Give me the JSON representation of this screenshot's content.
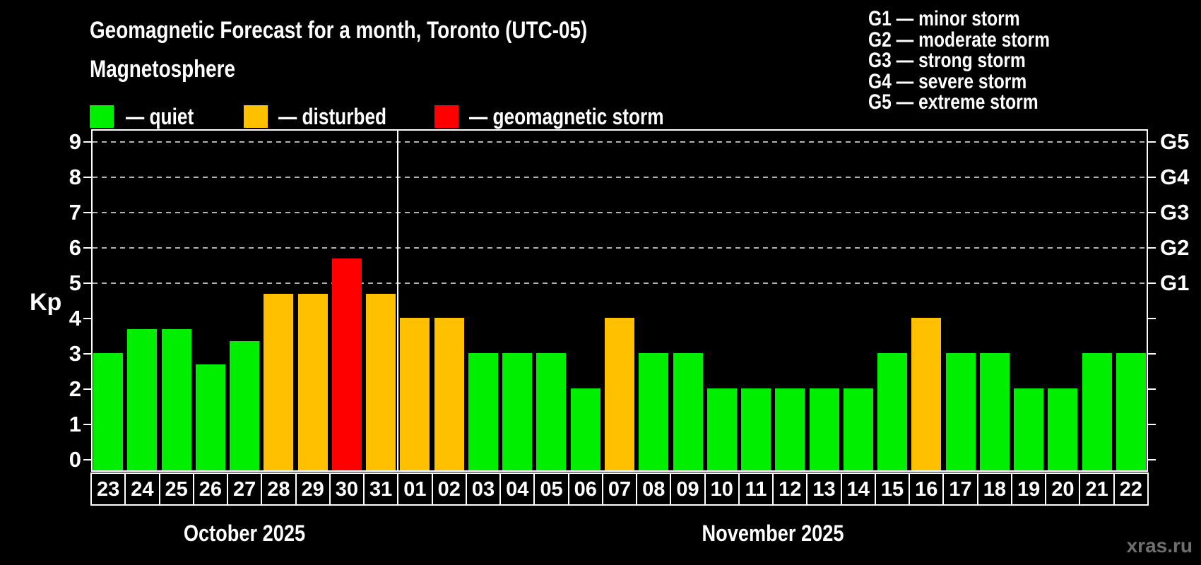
{
  "title": "Geomagnetic Forecast for a month, Toronto (UTC-05)",
  "subtitle": "Magnetosphere",
  "legend": {
    "items": [
      {
        "state": "quiet",
        "label": "— quiet",
        "color": "#00ee00"
      },
      {
        "state": "disturbed",
        "label": "— disturbed",
        "color": "#ffc000"
      },
      {
        "state": "storm",
        "label": "— geomagnetic storm",
        "color": "#ff0000"
      }
    ]
  },
  "g_scale_legend": [
    "G1 — minor storm",
    "G2 — moderate storm",
    "G3 — strong storm",
    "G4 — severe storm",
    "G5 — extreme storm"
  ],
  "watermark": "xras.ru",
  "chart_data": {
    "type": "bar",
    "title": "Geomagnetic Forecast for a month, Toronto (UTC-05)",
    "ylabel": "Kp",
    "ylim": [
      -0.34,
      9.32
    ],
    "yticks": [
      0,
      1,
      2,
      3,
      4,
      5,
      6,
      7,
      8,
      9
    ],
    "grid": "dashed horizontal lines at storm levels only",
    "grid_levels": [
      {
        "kp": 5,
        "g_label": "G1"
      },
      {
        "kp": 6,
        "g_label": "G2"
      },
      {
        "kp": 7,
        "g_label": "G3"
      },
      {
        "kp": 8,
        "g_label": "G4"
      },
      {
        "kp": 9,
        "g_label": "G5"
      }
    ],
    "months": [
      {
        "label": "October 2025",
        "days": 9
      },
      {
        "label": "November 2025",
        "days": 22
      }
    ],
    "categories": [
      "23",
      "24",
      "25",
      "26",
      "27",
      "28",
      "29",
      "30",
      "31",
      "01",
      "02",
      "03",
      "04",
      "05",
      "06",
      "07",
      "08",
      "09",
      "10",
      "11",
      "12",
      "13",
      "14",
      "15",
      "16",
      "17",
      "18",
      "19",
      "20",
      "21",
      "22"
    ],
    "values": [
      3.0,
      3.67,
      3.67,
      2.67,
      3.33,
      4.67,
      4.67,
      5.67,
      4.67,
      4.0,
      4.0,
      3.0,
      3.0,
      3.0,
      2.0,
      4.0,
      3.0,
      3.0,
      2.0,
      2.0,
      2.0,
      2.0,
      2.0,
      3.0,
      4.0,
      3.0,
      3.0,
      2.0,
      2.0,
      3.0,
      3.0
    ],
    "states": [
      "quiet",
      "quiet",
      "quiet",
      "quiet",
      "quiet",
      "disturbed",
      "disturbed",
      "storm",
      "disturbed",
      "disturbed",
      "disturbed",
      "quiet",
      "quiet",
      "quiet",
      "quiet",
      "disturbed",
      "quiet",
      "quiet",
      "quiet",
      "quiet",
      "quiet",
      "quiet",
      "quiet",
      "quiet",
      "disturbed",
      "quiet",
      "quiet",
      "quiet",
      "quiet",
      "quiet",
      "quiet"
    ],
    "colors": {
      "quiet": "#00ee00",
      "disturbed": "#ffc000",
      "storm": "#ff0000"
    }
  }
}
